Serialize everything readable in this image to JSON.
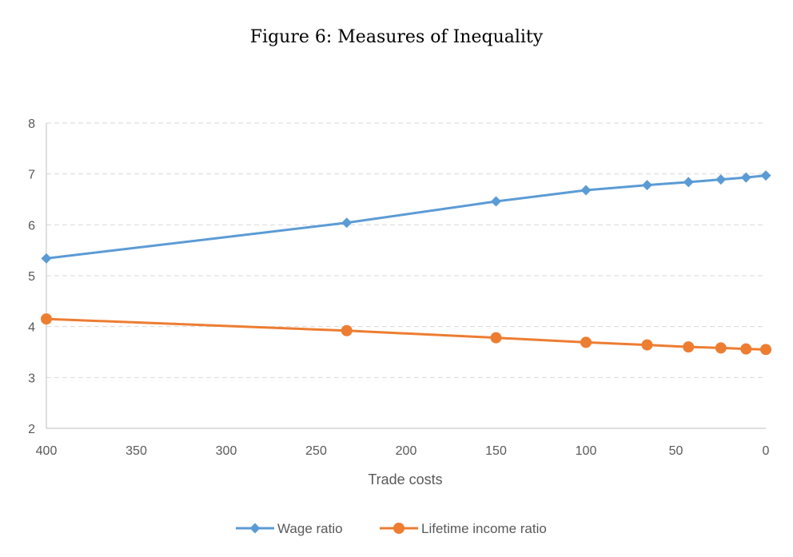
{
  "chart_data": {
    "type": "line",
    "title": "Figure 6: Measures of Inequality",
    "xlabel": "Trade costs",
    "ylabel": "",
    "xlim": [
      400,
      0
    ],
    "x_reversed": true,
    "ylim": [
      2,
      8
    ],
    "x_ticks": [
      400,
      350,
      300,
      250,
      200,
      150,
      100,
      50,
      0
    ],
    "y_ticks": [
      2,
      3,
      4,
      5,
      6,
      7,
      8
    ],
    "grid": "horizontal dashed",
    "legend_position": "bottom",
    "series": [
      {
        "name": "Wage ratio",
        "color": "#5b9bd5",
        "marker": "diamond",
        "x": [
          400,
          233,
          150,
          100,
          66,
          43,
          25,
          11,
          0
        ],
        "y": [
          5.34,
          6.04,
          6.46,
          6.68,
          6.78,
          6.84,
          6.89,
          6.93,
          6.97
        ]
      },
      {
        "name": "Lifetime income ratio",
        "color": "#ed7d31",
        "marker": "circle",
        "x": [
          400,
          233,
          150,
          100,
          66,
          43,
          25,
          11,
          0
        ],
        "y": [
          4.15,
          3.92,
          3.78,
          3.69,
          3.64,
          3.6,
          3.58,
          3.56,
          3.55
        ]
      }
    ]
  }
}
